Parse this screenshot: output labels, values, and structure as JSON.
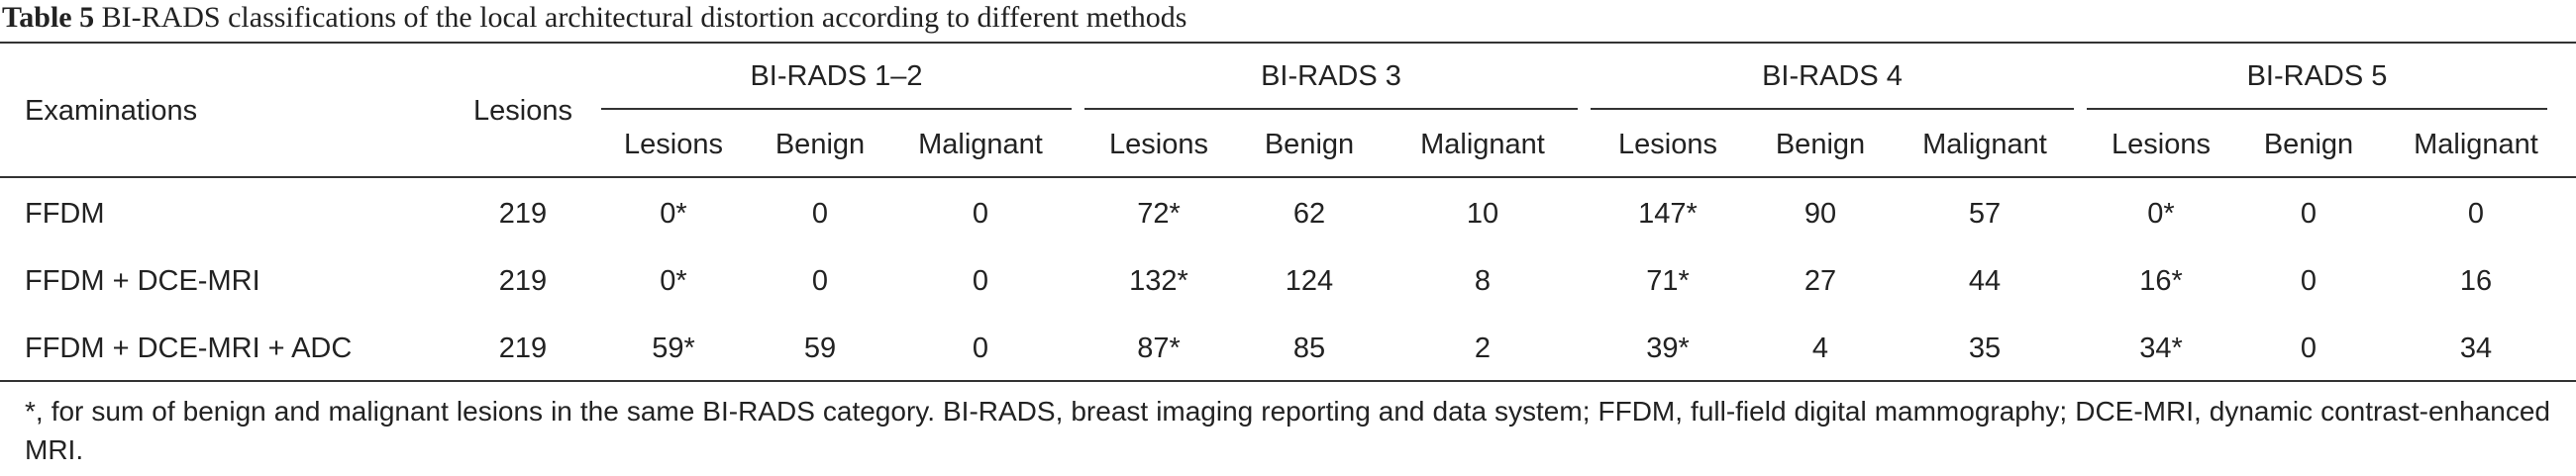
{
  "title": {
    "label": "Table 5",
    "text": "BI-RADS classifications of the local architectural distortion according to different methods"
  },
  "table": {
    "header": {
      "examinations": "Examinations",
      "lesions": "Lesions",
      "groups": [
        {
          "name": "BI-RADS 1–2",
          "columns": [
            "Lesions",
            "Benign",
            "Malignant"
          ]
        },
        {
          "name": "BI-RADS 3",
          "columns": [
            "Lesions",
            "Benign",
            "Malignant"
          ]
        },
        {
          "name": "BI-RADS 4",
          "columns": [
            "Lesions",
            "Benign",
            "Malignant"
          ]
        },
        {
          "name": "BI-RADS 5",
          "columns": [
            "Lesions",
            "Benign",
            "Malignant"
          ]
        }
      ]
    },
    "rows": [
      [
        "FFDM",
        "219",
        "0*",
        "0",
        "0",
        "72*",
        "62",
        "10",
        "147*",
        "90",
        "57",
        "0*",
        "0",
        "0"
      ],
      [
        "FFDM + DCE-MRI",
        "219",
        "0*",
        "0",
        "0",
        "132*",
        "124",
        "8",
        "71*",
        "27",
        "44",
        "16*",
        "0",
        "16"
      ],
      [
        "FFDM + DCE-MRI + ADC",
        "219",
        "59*",
        "59",
        "0",
        "87*",
        "85",
        "2",
        "39*",
        "4",
        "35",
        "34*",
        "0",
        "34"
      ]
    ]
  },
  "footnote": "*, for sum of benign and malignant lesions in the same BI-RADS category. BI-RADS, breast imaging reporting and data system; FFDM, full-field digital mammography; DCE-MRI, dynamic contrast-enhanced MRI."
}
